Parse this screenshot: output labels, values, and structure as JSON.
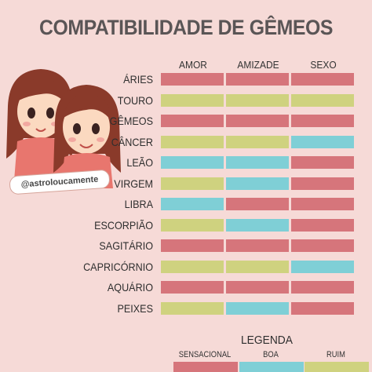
{
  "title": "COMPATIBILIDADE DE GÊMEOS",
  "handle": "@astroloucamente",
  "columns": [
    "AMOR",
    "AMIZADE",
    "SEXO"
  ],
  "colors": {
    "sensacional": "#d6757b",
    "boa": "#7fcfd6",
    "ruim": "#cfd27f",
    "background": "#f6dad7"
  },
  "rows": [
    {
      "sign": "ÁRIES",
      "cells": [
        "sensacional",
        "sensacional",
        "sensacional"
      ]
    },
    {
      "sign": "TOURO",
      "cells": [
        "ruim",
        "ruim",
        "ruim"
      ]
    },
    {
      "sign": "GÊMEOS",
      "cells": [
        "sensacional",
        "sensacional",
        "sensacional"
      ]
    },
    {
      "sign": "CÂNCER",
      "cells": [
        "ruim",
        "ruim",
        "boa"
      ]
    },
    {
      "sign": "LEÃO",
      "cells": [
        "boa",
        "boa",
        "sensacional"
      ]
    },
    {
      "sign": "VIRGEM",
      "cells": [
        "ruim",
        "boa",
        "sensacional"
      ]
    },
    {
      "sign": "LIBRA",
      "cells": [
        "boa",
        "sensacional",
        "sensacional"
      ]
    },
    {
      "sign": "ESCORPIÃO",
      "cells": [
        "ruim",
        "boa",
        "sensacional"
      ]
    },
    {
      "sign": "SAGITÁRIO",
      "cells": [
        "sensacional",
        "sensacional",
        "sensacional"
      ]
    },
    {
      "sign": "CAPRICÓRNIO",
      "cells": [
        "ruim",
        "ruim",
        "boa"
      ]
    },
    {
      "sign": "AQUÁRIO",
      "cells": [
        "sensacional",
        "sensacional",
        "sensacional"
      ]
    },
    {
      "sign": "PEIXES",
      "cells": [
        "ruim",
        "boa",
        "sensacional"
      ]
    }
  ],
  "legend": {
    "title": "LEGENDA",
    "items": [
      {
        "label": "SENSACIONAL",
        "key": "sensacional"
      },
      {
        "label": "BOA",
        "key": "boa"
      },
      {
        "label": "RUIM",
        "key": "ruim"
      }
    ]
  }
}
